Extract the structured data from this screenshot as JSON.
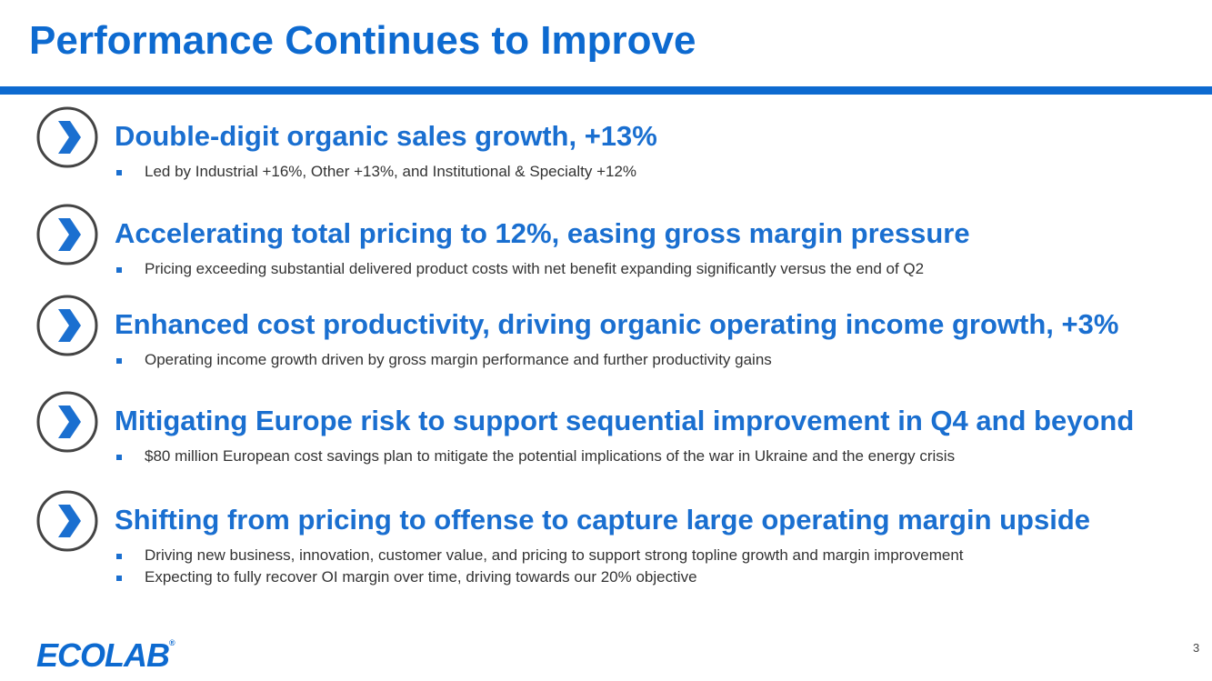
{
  "header": {
    "title": "Performance Continues to Improve"
  },
  "items": [
    {
      "heading": "Double-digit organic sales growth, +13%",
      "bullets": [
        "Led by Industrial +16%, Other +13%, and Institutional & Specialty +12%"
      ]
    },
    {
      "heading": "Accelerating total pricing to 12%, easing gross margin pressure",
      "bullets": [
        "Pricing exceeding substantial delivered product costs with net benefit expanding significantly versus the end of Q2"
      ]
    },
    {
      "heading": "Enhanced cost productivity, driving organic operating income growth, +3%",
      "bullets": [
        "Operating income growth driven by gross margin performance and further productivity gains"
      ]
    },
    {
      "heading": "Mitigating Europe risk to support sequential improvement in Q4 and beyond",
      "bullets": [
        "$80 million European cost savings plan to mitigate the potential implications of the war in Ukraine and the energy crisis"
      ]
    },
    {
      "heading": "Shifting from pricing to offense to capture large operating margin upside",
      "bullets": [
        "Driving new business, innovation, customer value, and pricing to support strong topline growth and margin improvement",
        "Expecting to fully recover OI margin over time, driving towards our 20% objective"
      ]
    }
  ],
  "footer": {
    "logo": "ECOLAB",
    "logo_mark": "®",
    "page_number": "3"
  }
}
